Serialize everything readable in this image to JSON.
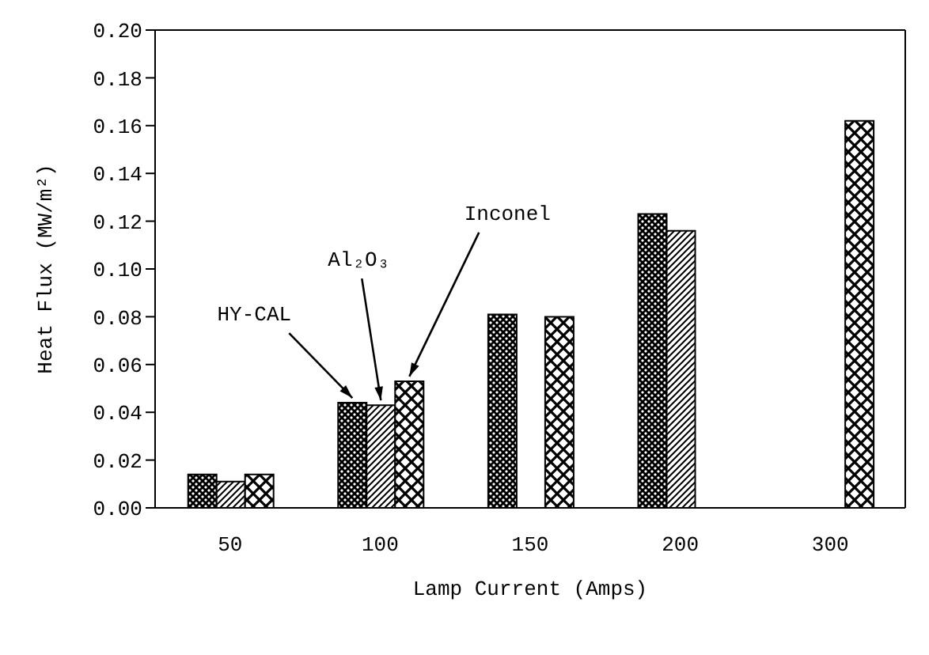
{
  "chart_data": {
    "type": "bar",
    "xlabel": "Lamp Current (Amps)",
    "ylabel": "Heat Flux (MW/m²)",
    "categories": [
      "50",
      "100",
      "150",
      "200",
      "300"
    ],
    "series": [
      {
        "name": "HY-CAL",
        "color": "#000000",
        "values": [
          0.014,
          0.044,
          0.081,
          0.123,
          null
        ]
      },
      {
        "name": "Al₂O₃",
        "color": "#000000",
        "values": [
          0.011,
          0.043,
          null,
          0.116,
          null
        ]
      },
      {
        "name": "Inconel",
        "color": "#000000",
        "values": [
          0.014,
          0.053,
          0.08,
          null,
          0.162
        ]
      }
    ],
    "ylim": [
      0,
      0.2
    ],
    "yticks": [
      {
        "value": 0,
        "label": "0.00"
      },
      0.02,
      0.04,
      0.06,
      0.08,
      {
        "value": 0.1,
        "label": "0.10"
      },
      0.12,
      0.14,
      0.16,
      0.18,
      {
        "value": 0.2,
        "label": "0.20"
      }
    ]
  }
}
